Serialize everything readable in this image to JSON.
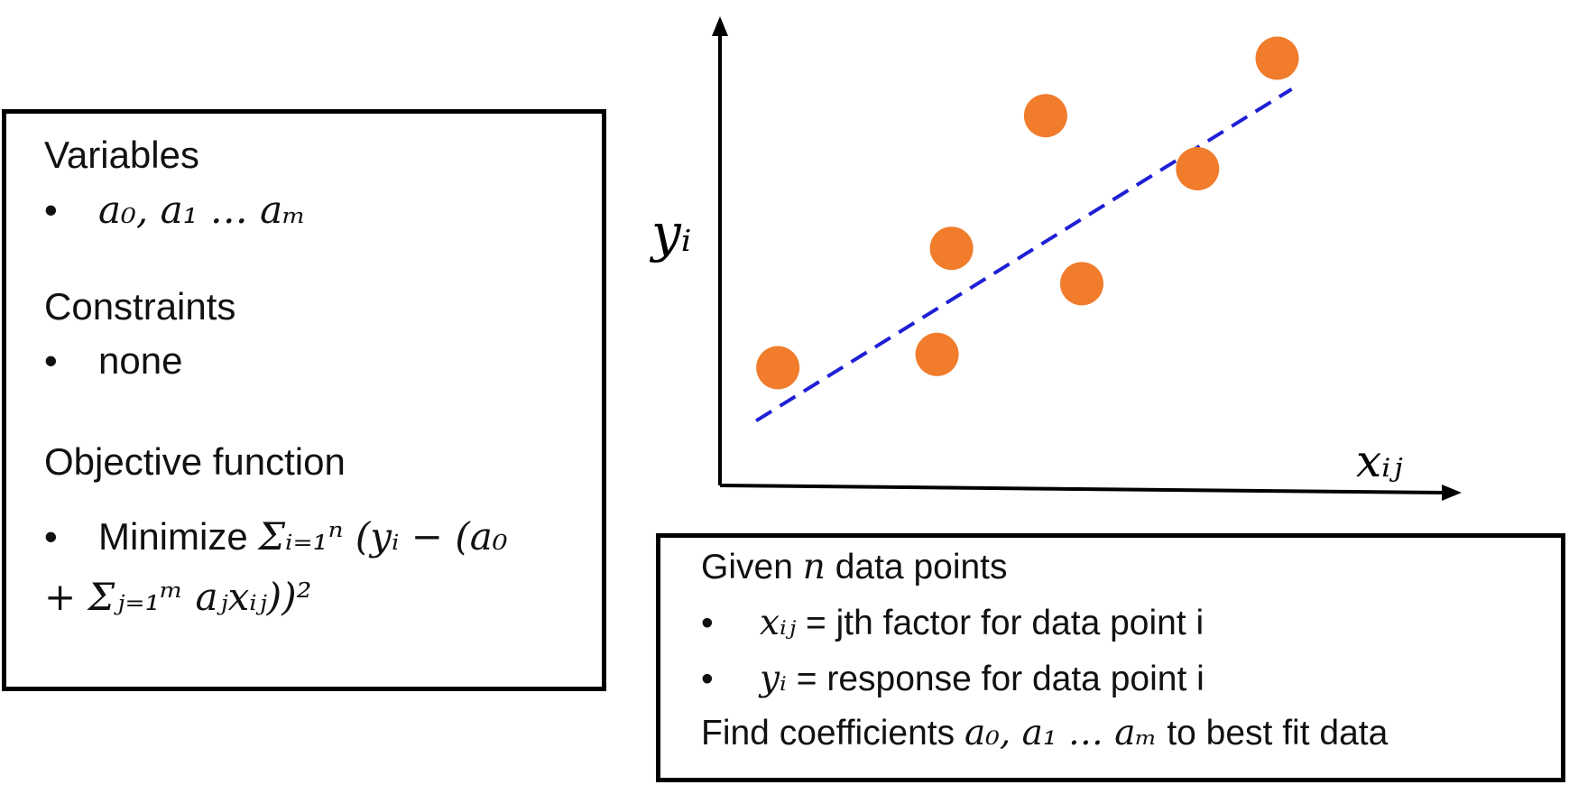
{
  "formulation": {
    "variables_title": "Variables",
    "variables_item": "a₀, a₁ … aₘ",
    "constraints_title": "Constraints",
    "constraints_item": "none",
    "objective_title": "Objective function",
    "objective_prefix": "Minimize",
    "objective_formula": "Σᵢ₌₁ⁿ (yᵢ − (a₀ + Σⱼ₌₁ᵐ aⱼxᵢⱼ))²"
  },
  "given": {
    "line1_prefix": "Given",
    "line1_var": "n",
    "line1_suffix": "data points",
    "bullet1_var": "xᵢⱼ",
    "bullet1_text": "= jth factor for data point i",
    "bullet2_var": "yᵢ",
    "bullet2_text": "= response for data point i",
    "line4_prefix": "Find coefficients",
    "line4_vars": "a₀, a₁ … aₘ",
    "line4_suffix": "to best fit data"
  },
  "chart_data": {
    "type": "scatter",
    "ylabel": "yᵢ",
    "xlabel": "xᵢⱼ",
    "points": [
      {
        "x": 0.08,
        "y": 0.25
      },
      {
        "x": 0.3,
        "y": 0.28
      },
      {
        "x": 0.32,
        "y": 0.52
      },
      {
        "x": 0.5,
        "y": 0.44
      },
      {
        "x": 0.45,
        "y": 0.82
      },
      {
        "x": 0.66,
        "y": 0.7
      },
      {
        "x": 0.77,
        "y": 0.95
      }
    ],
    "fit_line": {
      "x": [
        0.05,
        0.79
      ],
      "y": [
        0.13,
        0.88
      ]
    },
    "xlim": [
      0,
      1
    ],
    "ylim": [
      0,
      1
    ],
    "colors": {
      "points": "#f07c2c",
      "fit_line": "#1f1fd6",
      "axes": "#000000"
    }
  }
}
